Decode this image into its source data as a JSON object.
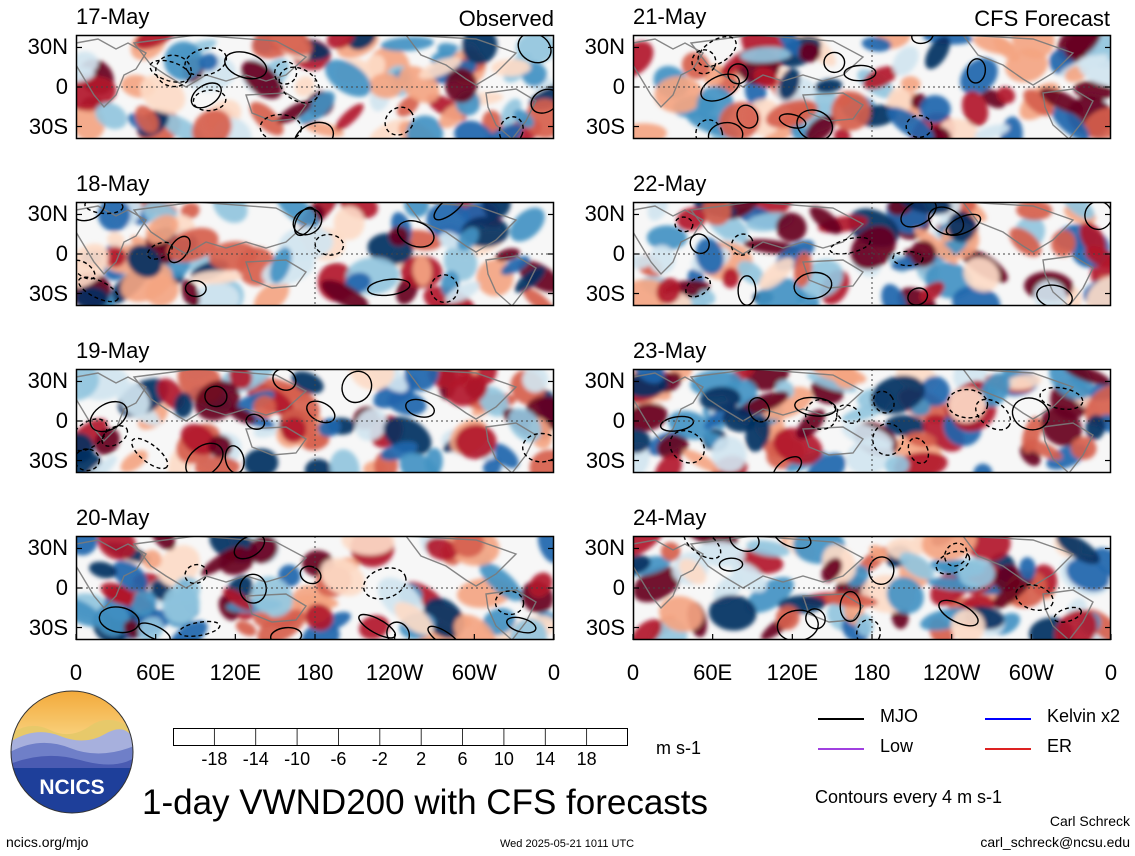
{
  "chart_data": {
    "type": "heatmap",
    "title": "1-day VWND200 with CFS forecasts",
    "columns": [
      {
        "label": "Observed",
        "dates": [
          "17-May",
          "18-May",
          "19-May",
          "20-May"
        ]
      },
      {
        "label": "CFS Forecast",
        "dates": [
          "21-May",
          "22-May",
          "23-May",
          "24-May"
        ]
      }
    ],
    "lat_ticks": [
      "30N",
      "0",
      "30S"
    ],
    "lon_ticks": [
      "0",
      "60E",
      "120E",
      "180",
      "120W",
      "60W",
      "0"
    ],
    "colorbar": {
      "units": "m s-1",
      "tick_labels": [
        "-18",
        "-14",
        "-10",
        "-6",
        "-2",
        "2",
        "6",
        "10",
        "14",
        "18"
      ],
      "colors": [
        "#053061",
        "#2166ac",
        "#4393c3",
        "#92c5de",
        "#d1e5f0",
        "#f7f7f7",
        "#fddbc7",
        "#f4a582",
        "#d6604d",
        "#b2182b",
        "#67001f"
      ]
    },
    "legend": [
      {
        "name": "MJO",
        "color": "#000000"
      },
      {
        "name": "Kelvin x2",
        "color": "#0000ff"
      },
      {
        "name": "Low",
        "color": "#a040e0"
      },
      {
        "name": "ER",
        "color": "#dd2222"
      }
    ],
    "contour_note": "Contours every 4 m s-1",
    "grid": true
  },
  "footer": {
    "site": "ncics.org/mjo",
    "timestamp": "Wed 2025-05-21 1011 UTC",
    "author": "Carl Schreck",
    "email": "carl_schreck@ncsu.edu",
    "logo_text": "NCICS"
  }
}
